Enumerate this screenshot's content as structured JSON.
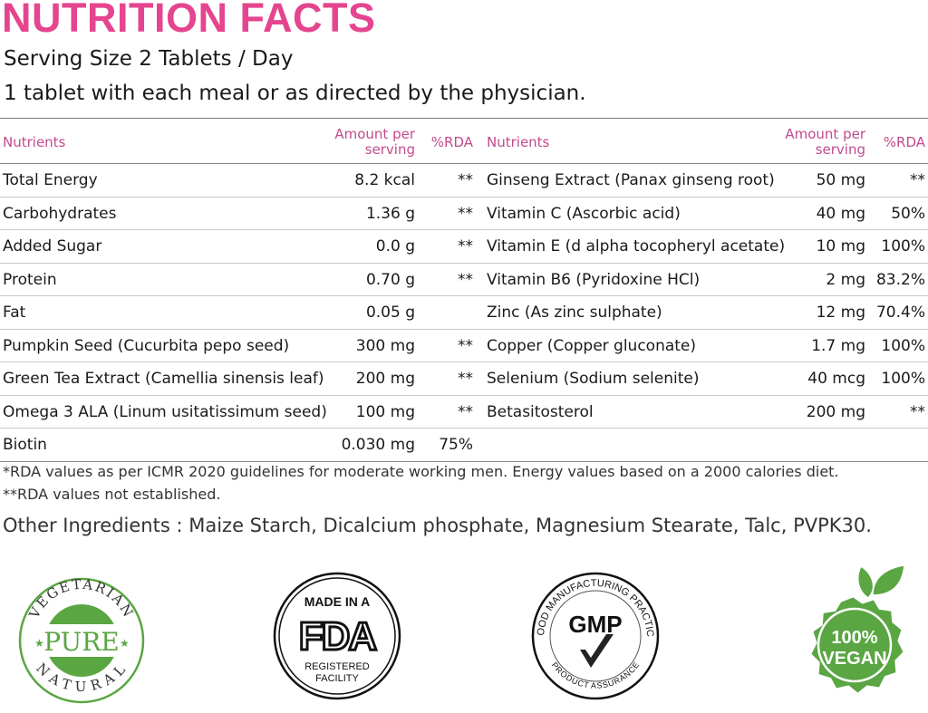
{
  "title": "NUTRITION FACTS",
  "serving_size": "Serving Size 2 Tablets / Day",
  "directions": "1 tablet with each meal or as directed by the physician.",
  "table": {
    "headers": {
      "nutrients": "Nutrients",
      "amount_line1": "Amount per",
      "amount_line2": "serving",
      "rda": "%RDA"
    },
    "left": [
      {
        "name": "Total Energy",
        "amount": "8.2 kcal",
        "rda": "**"
      },
      {
        "name": "Carbohydrates",
        "amount": "1.36 g",
        "rda": "**"
      },
      {
        "name": "Added Sugar",
        "amount": "0.0 g",
        "rda": "**"
      },
      {
        "name": "Protein",
        "amount": "0.70 g",
        "rda": "**"
      },
      {
        "name": "Fat",
        "amount": "0.05 g",
        "rda": ""
      },
      {
        "name": "Pumpkin Seed (Cucurbita pepo seed)",
        "amount": "300 mg",
        "rda": "**"
      },
      {
        "name": "Green Tea Extract (Camellia sinensis leaf)",
        "amount": "200 mg",
        "rda": "**"
      },
      {
        "name": "Omega 3 ALA (Linum usitatissimum seed)",
        "amount": "100 mg",
        "rda": "**"
      },
      {
        "name": "Biotin",
        "amount": "0.030 mg",
        "rda": "75%"
      }
    ],
    "right": [
      {
        "name": "Ginseng Extract (Panax ginseng root)",
        "amount": "50 mg",
        "rda": "**"
      },
      {
        "name": "Vitamin C (Ascorbic acid)",
        "amount": "40 mg",
        "rda": "50%"
      },
      {
        "name": "Vitamin E (d alpha tocopheryl acetate)",
        "amount": "10 mg",
        "rda": "100%"
      },
      {
        "name": "Vitamin B6 (Pyridoxine HCl)",
        "amount": "2 mg",
        "rda": "83.2%"
      },
      {
        "name": "Zinc (As zinc sulphate)",
        "amount": "12 mg",
        "rda": "70.4%"
      },
      {
        "name": "Copper (Copper gluconate)",
        "amount": "1.7 mg",
        "rda": "100%"
      },
      {
        "name": "Selenium (Sodium selenite)",
        "amount": "40 mcg",
        "rda": "100%"
      },
      {
        "name": "Betasitosterol",
        "amount": "200 mg",
        "rda": "**"
      },
      {
        "name": "",
        "amount": "",
        "rda": ""
      }
    ]
  },
  "footnote1": "*RDA values as per ICMR 2020 guidelines for moderate working men. Energy values based on a 2000 calories diet.",
  "footnote2": "**RDA values not established.",
  "other_ingredients": "Other Ingredients : Maize Starch, Dicalcium phosphate, Magnesium Stearate, Talc, PVPK30.",
  "logos": {
    "vegetarian": {
      "top": "VEGETARIAN",
      "center": "PURE",
      "bottom": "NATURAL"
    },
    "fda": {
      "top": "MADE IN A",
      "center": "FDA",
      "bottom1": "REGISTERED",
      "bottom2": "FACILITY"
    },
    "gmp": {
      "arc": "GOOD MANUFACTURING PRACTICE",
      "center": "GMP",
      "bottom": "PRODUCT ASSURANCE"
    },
    "vegan": {
      "line1": "100%",
      "line2": "VEGAN"
    }
  },
  "colors": {
    "title": "#e5458e",
    "header": "#c24b8d",
    "green": "#5aa642"
  }
}
